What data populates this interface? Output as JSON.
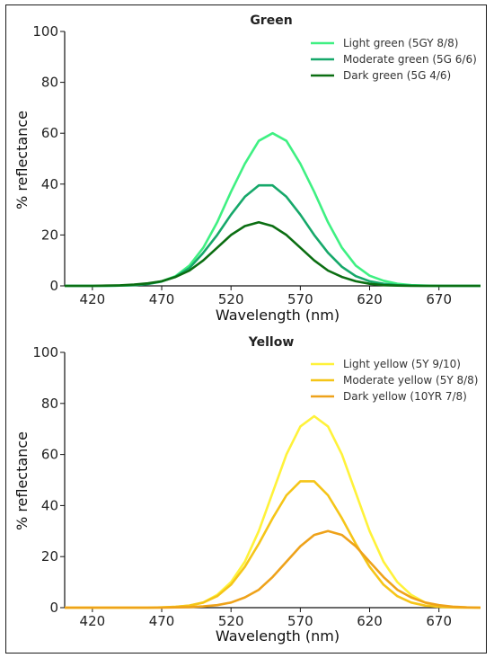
{
  "chart_data": [
    {
      "type": "line",
      "title": "Green",
      "xlabel": "Wavelength (nm)",
      "ylabel": "% reflectance",
      "xlim": [
        400,
        700
      ],
      "ylim": [
        0,
        100
      ],
      "xticks": [
        420,
        470,
        520,
        570,
        620,
        670
      ],
      "yticks": [
        0,
        20,
        40,
        60,
        80,
        100
      ],
      "legend": "top-right",
      "grid": false,
      "x": [
        400,
        410,
        420,
        430,
        440,
        450,
        460,
        470,
        480,
        490,
        500,
        510,
        520,
        530,
        540,
        550,
        560,
        570,
        580,
        590,
        600,
        610,
        620,
        630,
        640,
        650,
        660,
        670,
        680,
        690,
        700
      ],
      "series": [
        {
          "name": "Light green (5GY 8/8)",
          "color": "#3ff082",
          "values": [
            0,
            0,
            0,
            0,
            0.1,
            0.3,
            0.8,
            1.8,
            3.8,
            8,
            15,
            25,
            37,
            48,
            57,
            60,
            57,
            48,
            37,
            25,
            15,
            8,
            4,
            2,
            0.8,
            0.3,
            0.1,
            0,
            0,
            0,
            0
          ]
        },
        {
          "name": "Moderate green (5G 6/6)",
          "color": "#16a86a",
          "values": [
            0,
            0,
            0,
            0,
            0.1,
            0.3,
            0.7,
            1.7,
            3.6,
            7,
            13,
            20,
            28,
            35,
            39.5,
            39.5,
            35,
            28,
            20,
            13,
            7.5,
            3.8,
            1.8,
            0.8,
            0.3,
            0.1,
            0,
            0,
            0,
            0,
            0
          ]
        },
        {
          "name": "Dark green (5G 4/6)",
          "color": "#0b6e12",
          "values": [
            0,
            0,
            0,
            0.1,
            0.2,
            0.5,
            1,
            1.8,
            3.5,
            6,
            10,
            15,
            20,
            23.5,
            25,
            23.5,
            20,
            15,
            10,
            6,
            3.5,
            1.8,
            0.8,
            0.3,
            0.1,
            0,
            0,
            0,
            0,
            0,
            0
          ]
        }
      ]
    },
    {
      "type": "line",
      "title": "Yellow",
      "xlabel": "Wavelength (nm)",
      "ylabel": "% reflectance",
      "xlim": [
        400,
        700
      ],
      "ylim": [
        0,
        100
      ],
      "xticks": [
        420,
        470,
        520,
        570,
        620,
        670
      ],
      "yticks": [
        0,
        20,
        40,
        60,
        80,
        100
      ],
      "legend": "top-right",
      "grid": false,
      "x": [
        400,
        410,
        420,
        430,
        440,
        450,
        460,
        470,
        480,
        490,
        500,
        510,
        520,
        530,
        540,
        550,
        560,
        570,
        580,
        590,
        600,
        610,
        620,
        630,
        640,
        650,
        660,
        670,
        680,
        690,
        700
      ],
      "series": [
        {
          "name": "Light yellow (5Y 9/10)",
          "color": "#fff23a",
          "values": [
            0,
            0,
            0,
            0,
            0,
            0,
            0,
            0.1,
            0.3,
            0.8,
            2,
            5,
            10,
            18,
            30,
            45,
            60,
            71,
            75,
            71,
            60,
            45,
            30,
            18,
            10,
            5,
            2,
            0.8,
            0.3,
            0.1,
            0
          ]
        },
        {
          "name": "Moderate yellow (5Y 8/8)",
          "color": "#f5c518",
          "values": [
            0,
            0,
            0,
            0,
            0,
            0,
            0,
            0.1,
            0.3,
            0.8,
            2,
            4.5,
            9,
            16,
            25,
            35,
            44,
            49.5,
            49.5,
            44,
            35,
            25,
            16,
            9,
            4.5,
            2,
            0.8,
            0.3,
            0.1,
            0,
            0
          ]
        },
        {
          "name": "Dark yellow (10YR 7/8)",
          "color": "#eea21a",
          "values": [
            0,
            0,
            0,
            0,
            0,
            0,
            0,
            0,
            0.1,
            0.2,
            0.5,
            1,
            2,
            4,
            7,
            12,
            18,
            24,
            28.5,
            30,
            28.5,
            24,
            18,
            12,
            7,
            4,
            2,
            1,
            0.4,
            0.1,
            0
          ]
        }
      ]
    }
  ]
}
